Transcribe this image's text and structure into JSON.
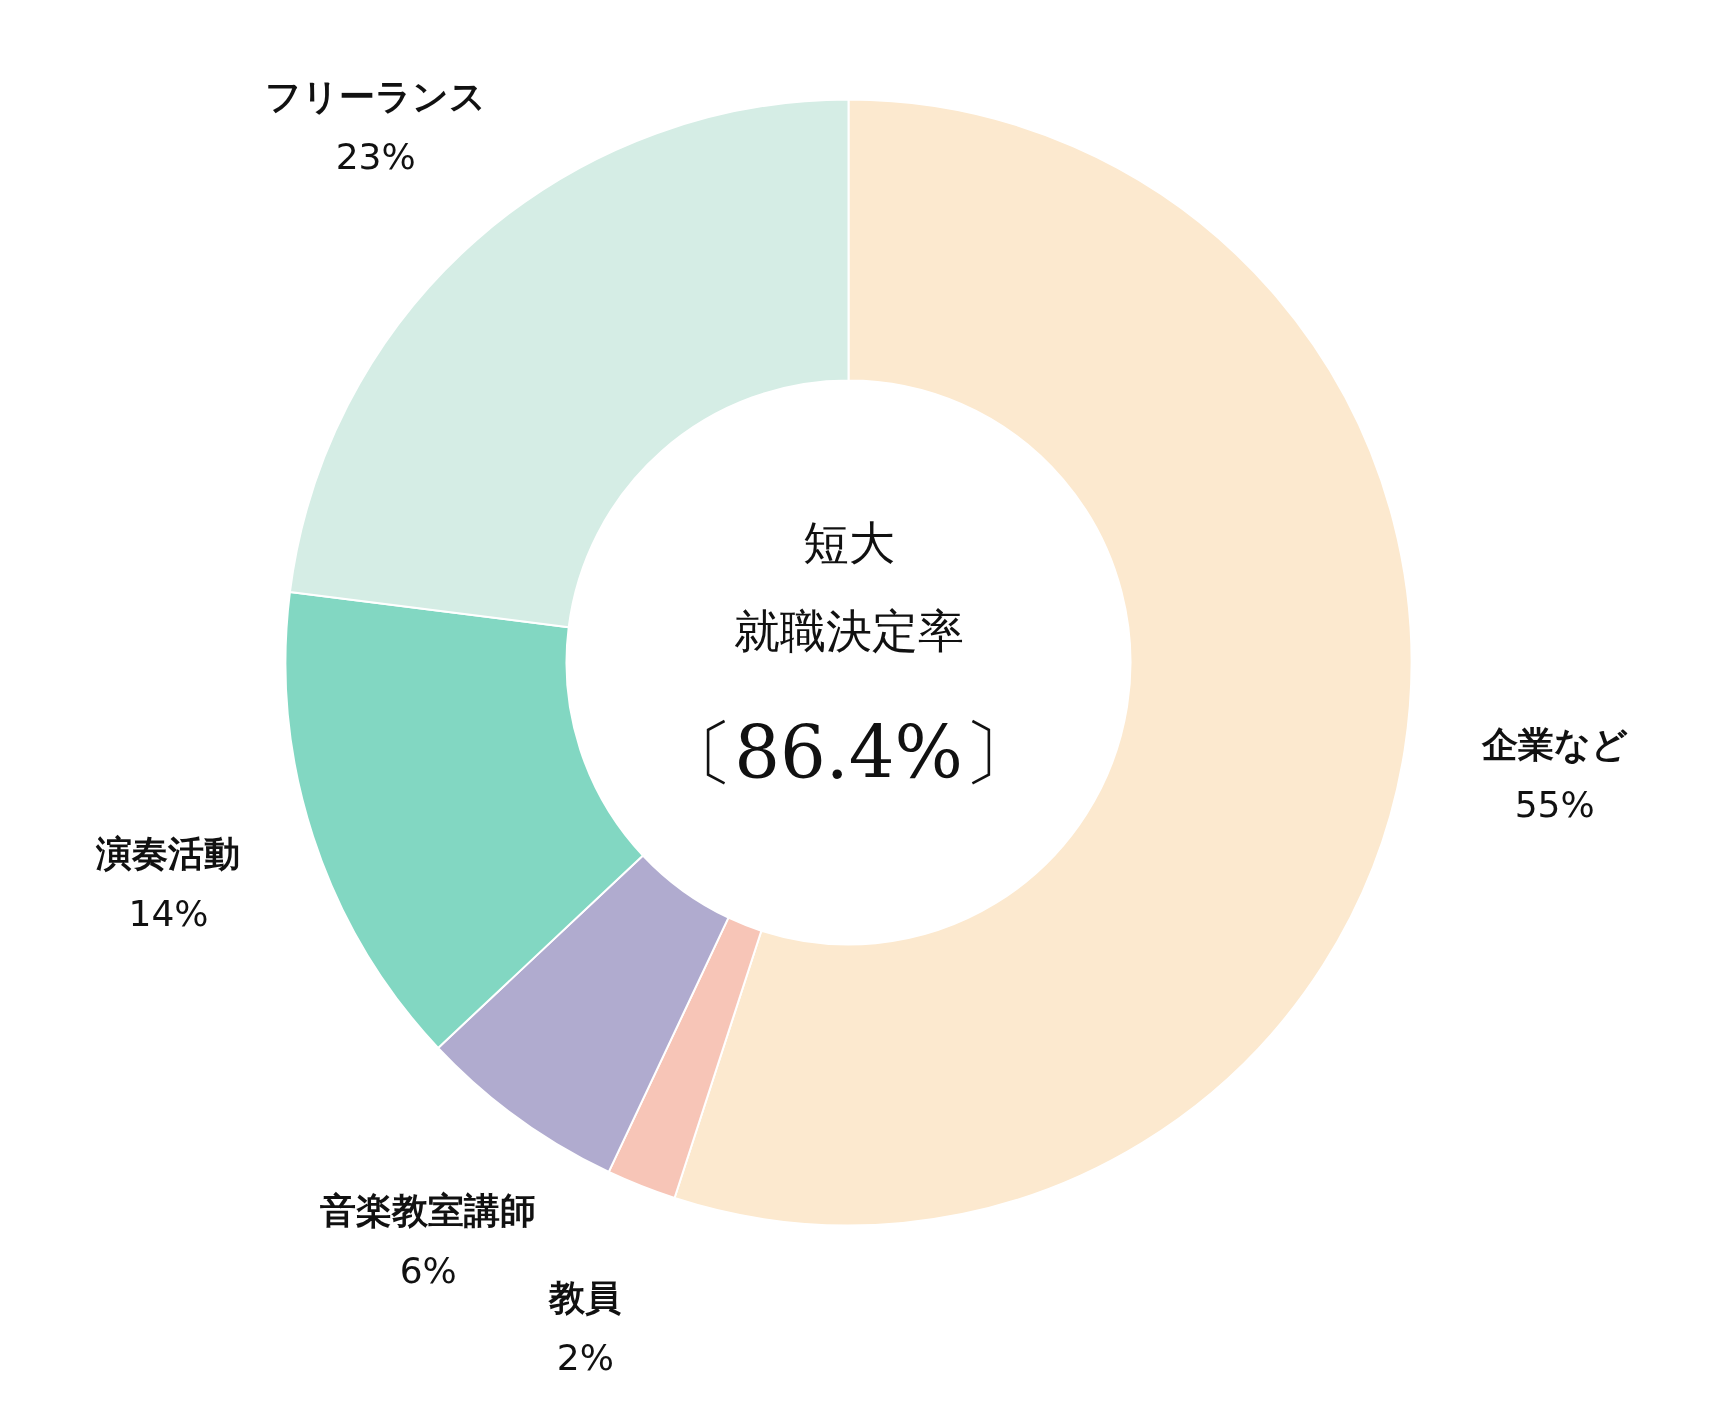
{
  "chart_data": {
    "type": "donut",
    "title": "短大",
    "subtitle": "就職決定率",
    "annotations": [
      "〔86.4%〕"
    ],
    "categories": [
      "企業など",
      "教員",
      "音楽教室講師",
      "演奏活動",
      "フリーランス"
    ],
    "values": [
      55,
      2,
      6,
      14,
      23
    ],
    "value_labels": [
      "55%",
      "2%",
      "6%",
      "14%",
      "23%"
    ],
    "colors": [
      "#fce9cf",
      "#f7c5b7",
      "#b0abcf",
      "#82d7c2",
      "#d5ede5"
    ]
  }
}
